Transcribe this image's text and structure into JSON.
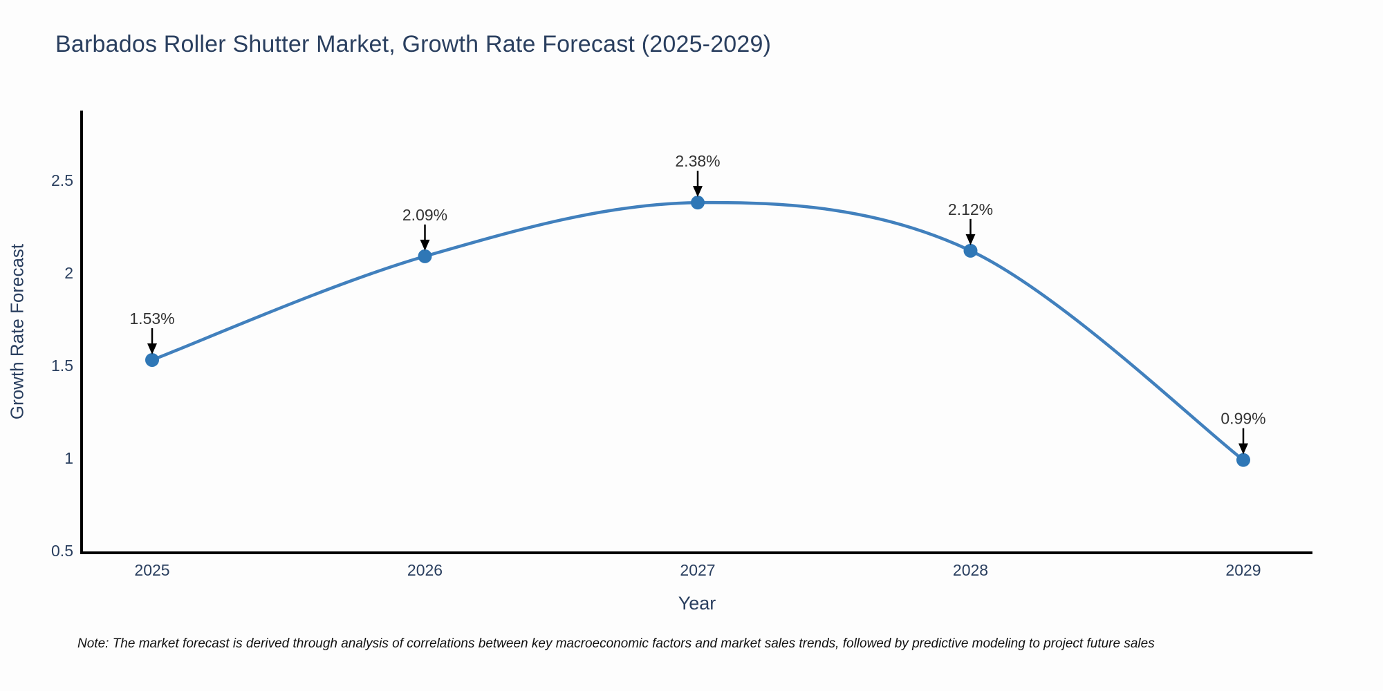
{
  "note": "Note: The market forecast is derived through analysis of correlations between key macroeconomic factors and market sales trends, followed by predictive modeling to project future sales",
  "chart_data": {
    "type": "line",
    "title": "Barbados Roller Shutter Market, Growth Rate Forecast (2025-2029)",
    "xlabel": "Year",
    "ylabel": "Growth Rate Forecast",
    "categories": [
      "2025",
      "2026",
      "2027",
      "2028",
      "2029"
    ],
    "values": [
      1.53,
      2.09,
      2.38,
      2.12,
      0.99
    ],
    "point_labels": [
      "1.53%",
      "2.09%",
      "2.38%",
      "2.12%",
      "0.99%"
    ],
    "ylim": [
      0.5,
      2.89
    ],
    "yticks": [
      0.5,
      1,
      1.5,
      2,
      2.5
    ],
    "line_shape": "spline",
    "grid": false,
    "legend": "none",
    "annotations": "arrow-down-to-point",
    "colors": {
      "line": "#4180bd",
      "marker": "#2f77b6",
      "axis": "#000000",
      "title_text": "#2a3f5f",
      "tick_text": "#2a3f5f",
      "annotation_text": "#333333",
      "annotation_arrow": "#000000",
      "background": "#fdfdfd"
    }
  }
}
